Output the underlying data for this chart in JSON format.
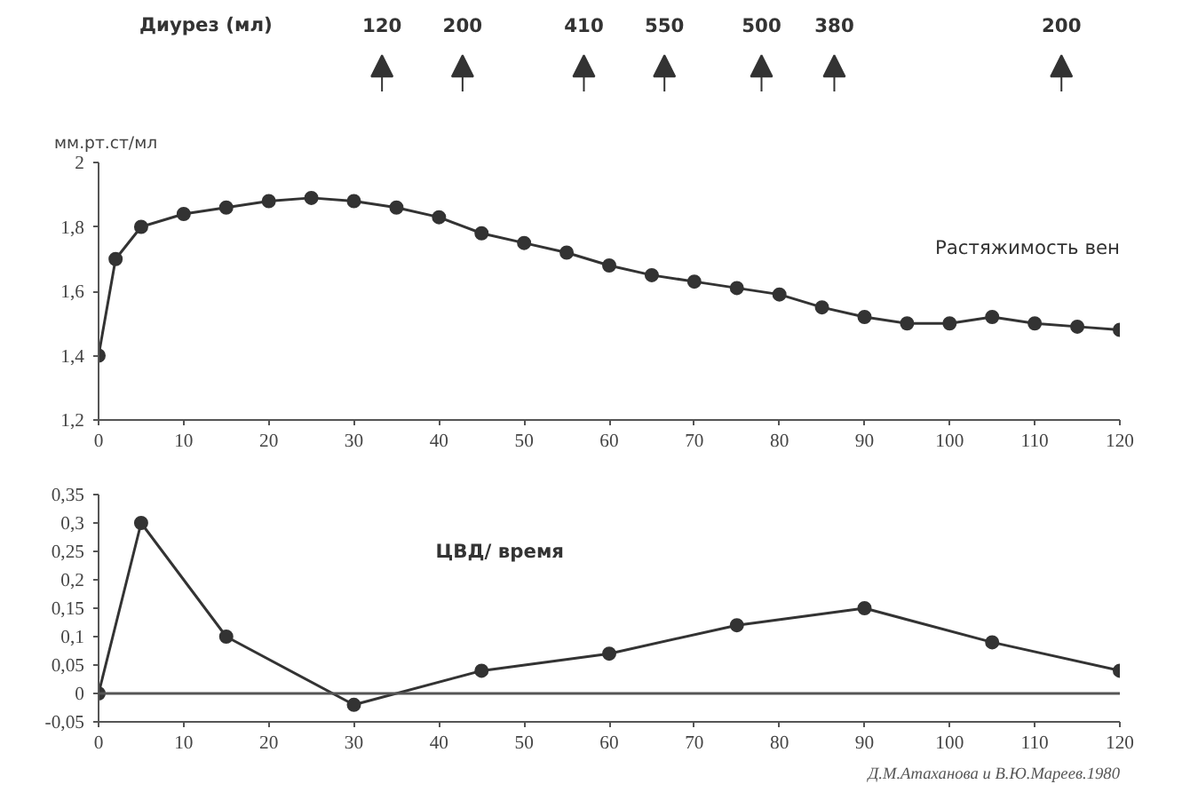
{
  "chart_data": [
    {
      "type": "line",
      "ylabel": "мм.рт.ст/мл",
      "x": [
        0,
        2,
        5,
        10,
        15,
        20,
        25,
        30,
        35,
        40,
        45,
        50,
        55,
        60,
        65,
        70,
        75,
        80,
        85,
        90,
        95,
        100,
        105,
        110,
        115,
        120
      ],
      "series": [
        {
          "name": "Растяжимость вен",
          "color": "#333333",
          "values": [
            1.4,
            1.7,
            1.8,
            1.84,
            1.86,
            1.88,
            1.89,
            1.88,
            1.86,
            1.83,
            1.78,
            1.75,
            1.72,
            1.68,
            1.65,
            1.63,
            1.61,
            1.59,
            1.55,
            1.52,
            1.5,
            1.5,
            1.52,
            1.5,
            1.49,
            1.48
          ]
        }
      ],
      "xlim": [
        0,
        120
      ],
      "xticks": [
        0,
        10,
        20,
        30,
        40,
        50,
        60,
        70,
        80,
        90,
        100,
        110,
        120
      ],
      "ylim": [
        1.2,
        2
      ],
      "yticks": [
        {
          "value": 1.2,
          "label": "1,2"
        },
        {
          "value": 1.4,
          "label": "1,4"
        },
        {
          "value": 1.6,
          "label": "1,6"
        },
        {
          "value": 1.8,
          "label": "1,8"
        },
        {
          "value": 2,
          "label": "2"
        }
      ],
      "marker": "circle",
      "line_style": "solid",
      "grid": false,
      "legend": false,
      "annotations": [
        "Диурез (мл)",
        "120",
        "200",
        "410",
        "550",
        "500",
        "380",
        "200"
      ]
    },
    {
      "type": "line",
      "x": [
        0,
        5,
        15,
        30,
        45,
        60,
        75,
        90,
        105,
        120
      ],
      "series": [
        {
          "name": "ЦВД/ время",
          "color": "#333333",
          "values": [
            0,
            0.3,
            0.1,
            -0.02,
            0.04,
            0.07,
            0.12,
            0.15,
            0.09,
            0.04
          ]
        }
      ],
      "xlim": [
        0,
        120
      ],
      "xticks": [
        0,
        10,
        20,
        30,
        40,
        50,
        60,
        70,
        80,
        90,
        100,
        110,
        120
      ],
      "ylim": [
        -0.05,
        0.35
      ],
      "yticks": [
        {
          "value": -0.05,
          "label": "-0,05"
        },
        {
          "value": 0,
          "label": "0"
        },
        {
          "value": 0.05,
          "label": "0,05"
        },
        {
          "value": 0.1,
          "label": "0,1"
        },
        {
          "value": 0.15,
          "label": "0,15"
        },
        {
          "value": 0.2,
          "label": "0,2"
        },
        {
          "value": 0.25,
          "label": "0,25"
        },
        {
          "value": 0.3,
          "label": "0,3"
        },
        {
          "value": 0.35,
          "label": "0,35"
        }
      ],
      "ref_lines": [
        {
          "axis": "y",
          "value": 0,
          "color": "#555555"
        }
      ],
      "marker": "circle",
      "line_style": "solid",
      "grid": false,
      "legend": false,
      "annotations": [
        "Д.М.Атаханова и В.Ю.Мареев.1980"
      ]
    }
  ]
}
